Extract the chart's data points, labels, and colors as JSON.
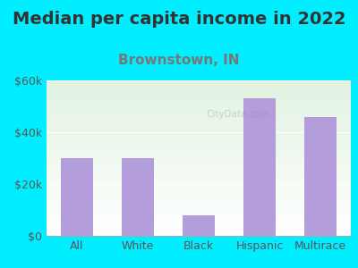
{
  "title": "Median per capita income in 2022",
  "subtitle": "Brownstown, IN",
  "categories": [
    "All",
    "White",
    "Black",
    "Hispanic",
    "Multirace"
  ],
  "values": [
    30000,
    30000,
    8000,
    53000,
    46000
  ],
  "bar_color": "#b39ddb",
  "background_color": "#00eeff",
  "title_color": "#333333",
  "subtitle_color": "#777777",
  "tick_label_color": "#555555",
  "ylabel_ticks": [
    "$0",
    "$20k",
    "$40k",
    "$60k"
  ],
  "ylim": [
    0,
    60000
  ],
  "yticks": [
    0,
    20000,
    40000,
    60000
  ],
  "title_fontsize": 14,
  "subtitle_fontsize": 11,
  "tick_fontsize": 9,
  "watermark": "CityData.com"
}
